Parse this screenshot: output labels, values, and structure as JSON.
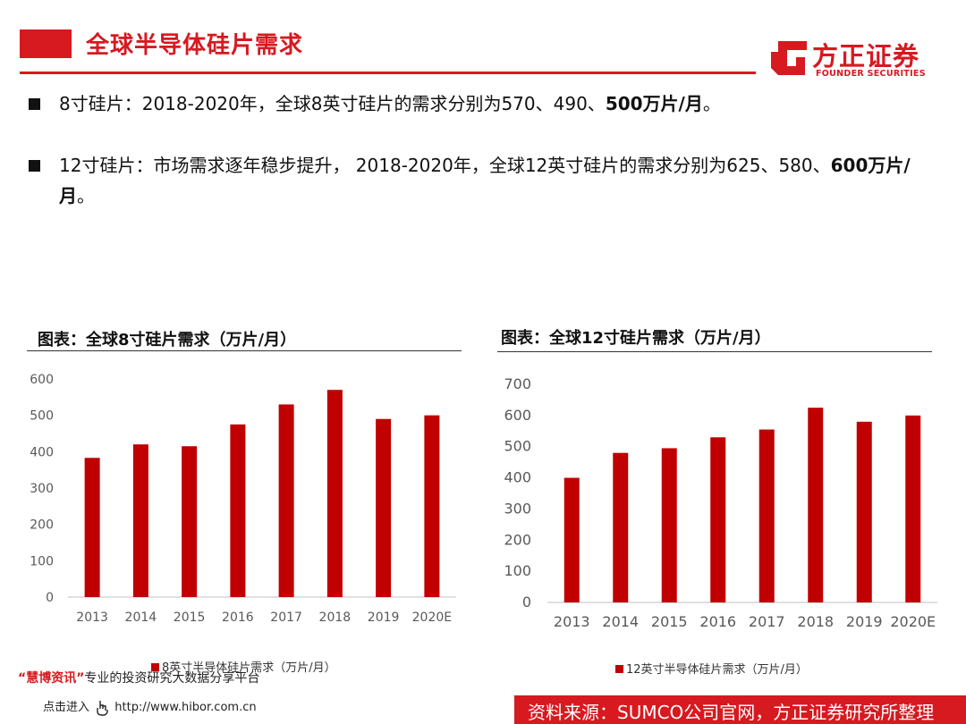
{
  "header": {
    "title": "全球半导体硅片需求"
  },
  "logo": {
    "name_cn": "方正证券",
    "name_en": "FOUNDER SECURITIES"
  },
  "bullets": [
    {
      "text": "8寸硅片：2018-2020年，全球8英寸硅片的需求分别为570、490、",
      "bold": "500万片/月",
      "tail": "。"
    },
    {
      "text": "12寸硅片：市场需求逐年稳步提升， 2018-2020年，全球12英寸硅片的需求分别为625、580、",
      "bold": "600万片/月",
      "tail": "。"
    }
  ],
  "colors": {
    "accent": "#d71920",
    "bar": "#c00000"
  },
  "chart_data": [
    {
      "type": "bar",
      "title": "图表：全球8寸硅片需求（万片/月）",
      "categories": [
        "2013",
        "2014",
        "2015",
        "2016",
        "2017",
        "2018",
        "2019",
        "2020E"
      ],
      "series": [
        {
          "name": "8英寸半导体硅片需求（万片/月）",
          "values": [
            383,
            420,
            415,
            475,
            530,
            570,
            490,
            500
          ]
        }
      ],
      "ylim": [
        0,
        600
      ],
      "yticks": [
        0,
        100,
        200,
        300,
        400,
        500,
        600
      ],
      "grid": false,
      "legend": "bottom"
    },
    {
      "type": "bar",
      "title": "图表：全球12寸硅片需求（万片/月）",
      "categories": [
        "2013",
        "2014",
        "2015",
        "2016",
        "2017",
        "2018",
        "2019",
        "2020E"
      ],
      "series": [
        {
          "name": "12英寸半导体硅片需求（万片/月）",
          "values": [
            400,
            480,
            495,
            530,
            555,
            625,
            580,
            600
          ]
        }
      ],
      "ylim": [
        0,
        700
      ],
      "yticks": [
        0,
        100,
        200,
        300,
        400,
        500,
        600,
        700
      ],
      "grid": false,
      "legend": "bottom"
    }
  ],
  "watermark": {
    "brand": "“慧博资讯”",
    "text": "专业的投资研究大数据分享平台",
    "enter": "点击进入",
    "url": "http://www.hibor.com.cn"
  },
  "footer": {
    "source": "资料来源：SUMCO公司官网，方正证券研究所整理"
  }
}
